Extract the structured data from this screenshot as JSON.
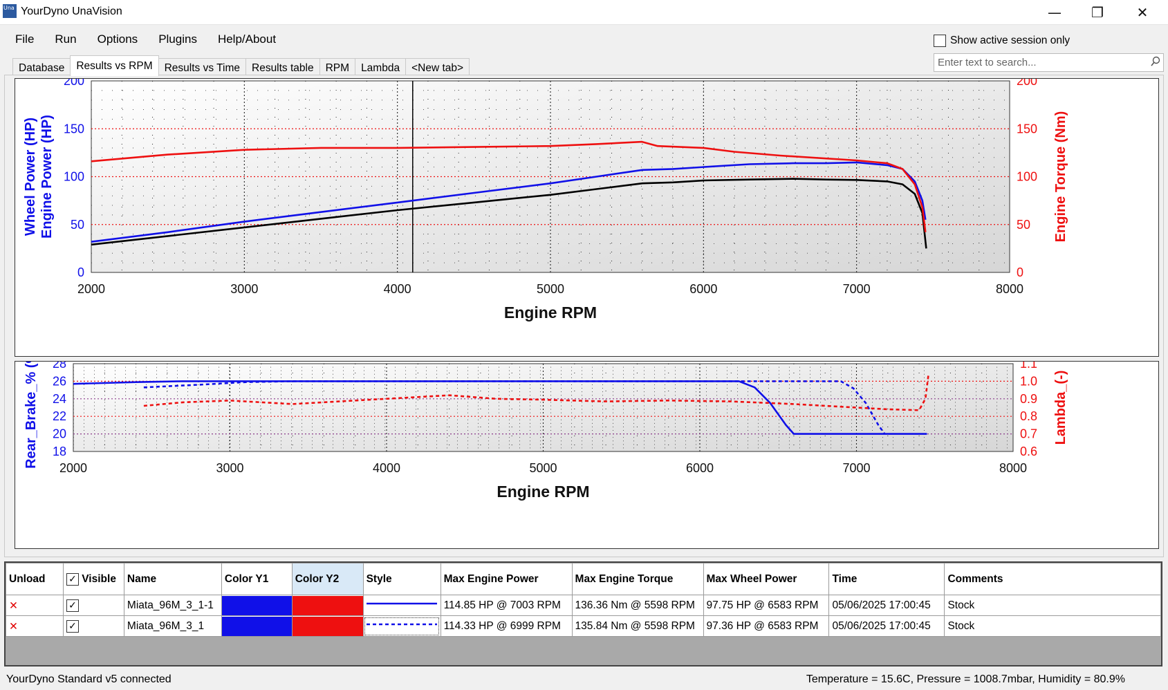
{
  "window": {
    "title": "YourDyno UnaVision",
    "icon_text": "Una",
    "minimize_glyph": "—",
    "restore_glyph": "❐",
    "close_glyph": "✕"
  },
  "menu": [
    "File",
    "Run",
    "Options",
    "Plugins",
    "Help/About"
  ],
  "tabs": [
    {
      "label": "Database",
      "active": false
    },
    {
      "label": "Results vs RPM",
      "active": true
    },
    {
      "label": "Results vs Time",
      "active": false
    },
    {
      "label": "Results table",
      "active": false
    },
    {
      "label": "RPM",
      "active": false
    },
    {
      "label": "Lambda",
      "active": false
    },
    {
      "label": "<New tab>",
      "active": false
    }
  ],
  "session_filter": {
    "label": "Show active session only",
    "checked": false
  },
  "search": {
    "placeholder": "Enter text to search...",
    "icon": "search-icon"
  },
  "colors": {
    "blue": "#1010e8",
    "red": "#ee1010",
    "black": "#000000",
    "dot_red": "#ee1010",
    "dot_blue": "#3030c0"
  },
  "chart_data": [
    {
      "type": "line",
      "title": "",
      "xlabel": "Engine RPM",
      "ylabel_left": [
        "Wheel Power (HP)",
        "Engine Power (HP)"
      ],
      "ylabel_right": "Engine Torque (Nm)",
      "xlim": [
        2000,
        8000
      ],
      "ylim_left": [
        0,
        200
      ],
      "ylim_right": [
        0,
        200
      ],
      "x_ticks": [
        "2000",
        "3000",
        "4000",
        "5000",
        "6000",
        "7000",
        "8000"
      ],
      "y_ticks_left": [
        "0",
        "50",
        "100",
        "150",
        "200"
      ],
      "y_ticks_right": [
        "0",
        "50",
        "100",
        "150",
        "200"
      ],
      "cursor_rpm": 4100,
      "grid": true,
      "series": [
        {
          "role": "engine power",
          "axis": "left",
          "color": "#1010e8",
          "points": [
            [
              2000,
              32
            ],
            [
              2500,
              42
            ],
            [
              3000,
              53
            ],
            [
              3500,
              63
            ],
            [
              4000,
              73
            ],
            [
              4500,
              83
            ],
            [
              5000,
              93
            ],
            [
              5300,
              100
            ],
            [
              5600,
              107
            ],
            [
              5800,
              108
            ],
            [
              6000,
              110
            ],
            [
              6300,
              113
            ],
            [
              6583,
              114
            ],
            [
              6800,
              114
            ],
            [
              7003,
              114.85
            ],
            [
              7200,
              112
            ],
            [
              7300,
              108
            ],
            [
              7380,
              95
            ],
            [
              7430,
              75
            ],
            [
              7450,
              55
            ]
          ]
        },
        {
          "role": "wheel power",
          "axis": "left",
          "color": "#000000",
          "points": [
            [
              2000,
              29
            ],
            [
              2500,
              38
            ],
            [
              3000,
              47
            ],
            [
              3500,
              56
            ],
            [
              4000,
              65
            ],
            [
              4500,
              73
            ],
            [
              5000,
              81
            ],
            [
              5300,
              87
            ],
            [
              5600,
              93
            ],
            [
              5800,
              94
            ],
            [
              6000,
              96
            ],
            [
              6300,
              97
            ],
            [
              6583,
              97.75
            ],
            [
              6800,
              97
            ],
            [
              7000,
              96.5
            ],
            [
              7200,
              95
            ],
            [
              7300,
              92
            ],
            [
              7380,
              82
            ],
            [
              7430,
              62
            ],
            [
              7455,
              25
            ]
          ]
        },
        {
          "role": "engine torque",
          "axis": "right",
          "color": "#ee1010",
          "points": [
            [
              2000,
              116
            ],
            [
              2500,
              123
            ],
            [
              3000,
              128
            ],
            [
              3500,
              130
            ],
            [
              4000,
              130
            ],
            [
              4500,
              131
            ],
            [
              5000,
              132
            ],
            [
              5300,
              134
            ],
            [
              5598,
              136.36
            ],
            [
              5700,
              132
            ],
            [
              6000,
              130
            ],
            [
              6200,
              126
            ],
            [
              6500,
              122
            ],
            [
              7000,
              117
            ],
            [
              7200,
              114
            ],
            [
              7300,
              108
            ],
            [
              7380,
              92
            ],
            [
              7430,
              68
            ],
            [
              7450,
              42
            ]
          ]
        }
      ]
    },
    {
      "type": "line",
      "title": "",
      "xlabel": "Engine RPM",
      "ylabel_left": "Rear_Brake_% (%)",
      "ylabel_right": "Lambda_(-)",
      "xlim": [
        2000,
        8000
      ],
      "ylim_left": [
        18,
        28
      ],
      "ylim_right": [
        0.6,
        1.1
      ],
      "x_ticks": [
        "2000",
        "3000",
        "4000",
        "5000",
        "6000",
        "7000",
        "8000"
      ],
      "y_ticks_left": [
        "18",
        "20",
        "22",
        "24",
        "26",
        "28"
      ],
      "y_ticks_right": [
        "0.6",
        "0.7",
        "0.8",
        "0.9",
        "1.0",
        "1.1"
      ],
      "grid": true,
      "series": [
        {
          "role": "rear brake run 1",
          "axis": "left",
          "color": "#1010e8",
          "style": "solid",
          "points": [
            [
              2000,
              25.7
            ],
            [
              2400,
              25.9
            ],
            [
              2700,
              26
            ],
            [
              6250,
              26
            ],
            [
              6350,
              25.3
            ],
            [
              6450,
              23.5
            ],
            [
              6550,
              21
            ],
            [
              6600,
              20
            ],
            [
              7450,
              20
            ]
          ]
        },
        {
          "role": "rear brake run 2",
          "axis": "left",
          "color": "#1010e8",
          "style": "dashed",
          "points": [
            [
              2450,
              25.3
            ],
            [
              2800,
              25.6
            ],
            [
              3100,
              25.9
            ],
            [
              3400,
              26
            ],
            [
              6900,
              26
            ],
            [
              6980,
              25.2
            ],
            [
              7060,
              23.5
            ],
            [
              7140,
              21
            ],
            [
              7180,
              20
            ]
          ]
        },
        {
          "role": "lambda run 2",
          "axis": "right",
          "color": "#ee1010",
          "style": "dashed",
          "points": [
            [
              2450,
              0.86
            ],
            [
              2700,
              0.88
            ],
            [
              3000,
              0.89
            ],
            [
              3400,
              0.87
            ],
            [
              3800,
              0.89
            ],
            [
              4200,
              0.91
            ],
            [
              4400,
              0.92
            ],
            [
              4700,
              0.9
            ],
            [
              5000,
              0.895
            ],
            [
              5400,
              0.885
            ],
            [
              5800,
              0.89
            ],
            [
              6200,
              0.885
            ],
            [
              6600,
              0.87
            ],
            [
              7000,
              0.85
            ],
            [
              7200,
              0.84
            ],
            [
              7400,
              0.835
            ],
            [
              7440,
              0.9
            ],
            [
              7460,
              1.04
            ]
          ]
        }
      ]
    }
  ],
  "table": {
    "columns": [
      "Unload",
      "Visible",
      "Name",
      "Color Y1",
      "Color Y2",
      "Style",
      "Max Engine Power",
      "Max Engine Torque",
      "Max Wheel Power",
      "Time",
      "Comments"
    ],
    "visible_all_checked": true,
    "rows": [
      {
        "unload": "✕",
        "visible": true,
        "name": "Miata_96M_3_1-1",
        "color_y1": "#1010e8",
        "color_y2": "#ee1010",
        "style": "solid",
        "max_engine_power": "114.85 HP @ 7003 RPM",
        "max_engine_torque": "136.36 Nm @ 5598 RPM",
        "max_wheel_power": "97.75 HP @ 6583 RPM",
        "time": "05/06/2025 17:00:45",
        "comments": "Stock"
      },
      {
        "unload": "✕",
        "visible": true,
        "name": "Miata_96M_3_1",
        "color_y1": "#1010e8",
        "color_y2": "#ee1010",
        "style": "dashed",
        "max_engine_power": "114.33 HP @ 6999 RPM",
        "max_engine_torque": "135.84 Nm @ 5598 RPM",
        "max_wheel_power": "97.36 HP @ 6583 RPM",
        "time": "05/06/2025 17:00:45",
        "comments": "Stock"
      }
    ]
  },
  "status": {
    "left": "YourDyno Standard v5 connected",
    "right": "Temperature = 15.6C, Pressure = 1008.7mbar, Humidity = 80.9%"
  }
}
